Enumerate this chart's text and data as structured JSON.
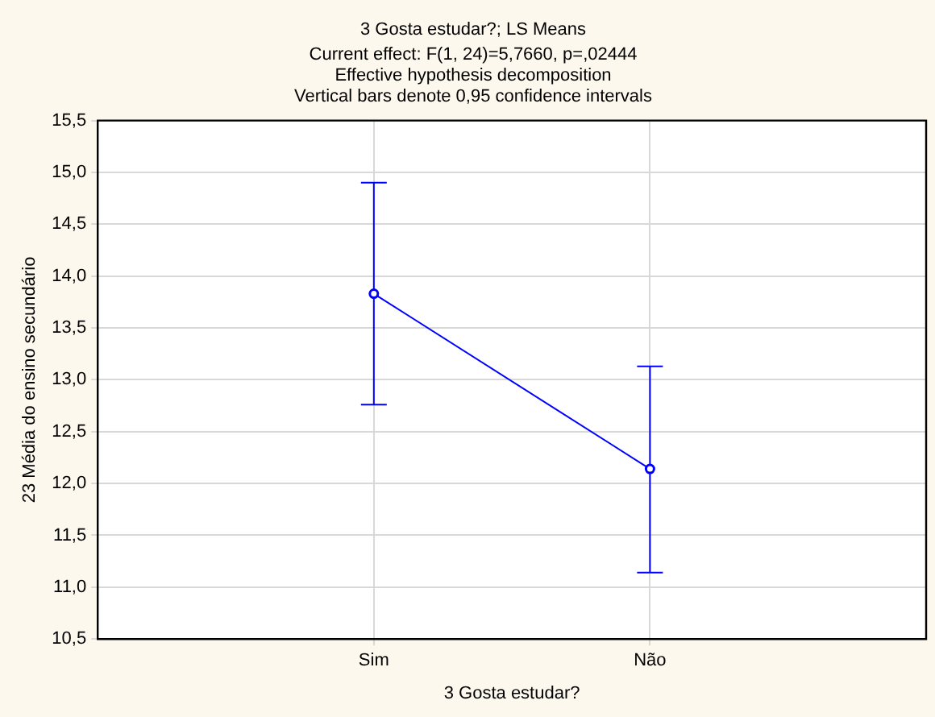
{
  "chart_data": {
    "type": "line",
    "title": "3 Gosta estudar?; LS Means",
    "subtitle": "Current effect: F(1, 24)=5,7660, p=,02444\nEffective hypothesis decomposition\nVertical bars denote 0,95 confidence intervals",
    "xlabel": "3 Gosta estudar?",
    "ylabel": "23 Média do ensino secundário",
    "categories": [
      "Sim",
      "Não"
    ],
    "series": [
      {
        "color": "#0000ff",
        "values": [
          13.83,
          12.14
        ],
        "errors": [
          [
            12.76,
            14.9
          ],
          [
            11.14,
            13.13
          ]
        ]
      }
    ],
    "ylim": [
      10.5,
      15.5
    ],
    "yticks": [
      {
        "value": 10.5,
        "label": "10,5"
      },
      {
        "value": 11,
        "label": "11,0"
      },
      {
        "value": 11.5,
        "label": "11,5"
      },
      {
        "value": 12,
        "label": "12,0"
      },
      {
        "value": 12.5,
        "label": "12,5"
      },
      {
        "value": 13,
        "label": "13,0"
      },
      {
        "value": 13.5,
        "label": "13,5"
      },
      {
        "value": 14,
        "label": "14,0"
      },
      {
        "value": 14.5,
        "label": "14,5"
      },
      {
        "value": 15,
        "label": "15,0"
      },
      {
        "value": 15.5,
        "label": "15,5"
      }
    ],
    "grid": true,
    "legend": false,
    "marker": "circle",
    "line_style": "solid"
  }
}
